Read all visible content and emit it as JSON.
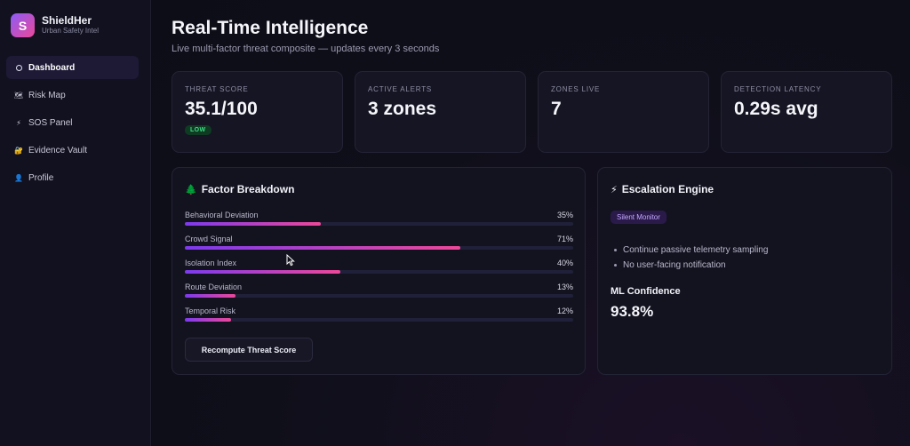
{
  "brand": {
    "name": "ShieldHer",
    "subtitle": "Urban Safety Intel",
    "logo_letter": "S"
  },
  "sidebar": {
    "items": [
      {
        "label": "Dashboard",
        "icon": "circle-icon",
        "active": true
      },
      {
        "label": "Risk Map",
        "icon": "map-icon",
        "glyph": "🗺"
      },
      {
        "label": "SOS Panel",
        "icon": "lightning-icon",
        "glyph": "⚡"
      },
      {
        "label": "Evidence Vault",
        "icon": "lock-icon",
        "glyph": "🔐"
      },
      {
        "label": "Profile",
        "icon": "person-icon",
        "glyph": "👤"
      }
    ]
  },
  "header": {
    "title": "Real-Time Intelligence",
    "subtitle": "Live multi-factor threat composite — updates every 3 seconds"
  },
  "stats": [
    {
      "label": "THREAT SCORE",
      "value": "35.1/100",
      "badge": "LOW"
    },
    {
      "label": "ACTIVE ALERTS",
      "value": "3 zones"
    },
    {
      "label": "ZONES LIVE",
      "value": "7"
    },
    {
      "label": "DETECTION LATENCY",
      "value": "0.29s avg"
    }
  ],
  "factor_breakdown": {
    "title": "Factor Breakdown",
    "icon": "tree-icon",
    "glyph": "🌲",
    "factors": [
      {
        "label": "Behavioral Deviation",
        "percent_text": "35%",
        "value": 35
      },
      {
        "label": "Crowd Signal",
        "percent_text": "71%",
        "value": 71
      },
      {
        "label": "Isolation Index",
        "percent_text": "40%",
        "value": 40
      },
      {
        "label": "Route Deviation",
        "percent_text": "13%",
        "value": 13
      },
      {
        "label": "Temporal Risk",
        "percent_text": "12%",
        "value": 12
      }
    ],
    "button_label": "Recompute Threat Score"
  },
  "escalation": {
    "title": "Escalation Engine",
    "icon": "lightning-icon",
    "glyph": "⚡",
    "badge": "Silent Monitor",
    "bullets": [
      "Continue passive telemetry sampling",
      "No user-facing notification"
    ],
    "ml_label": "ML Confidence",
    "ml_value": "93.8%"
  },
  "colors": {
    "accent_start": "#7c3aed",
    "accent_end": "#ec4899",
    "low_badge": "#3ddc84",
    "background": "#0d0d17"
  }
}
